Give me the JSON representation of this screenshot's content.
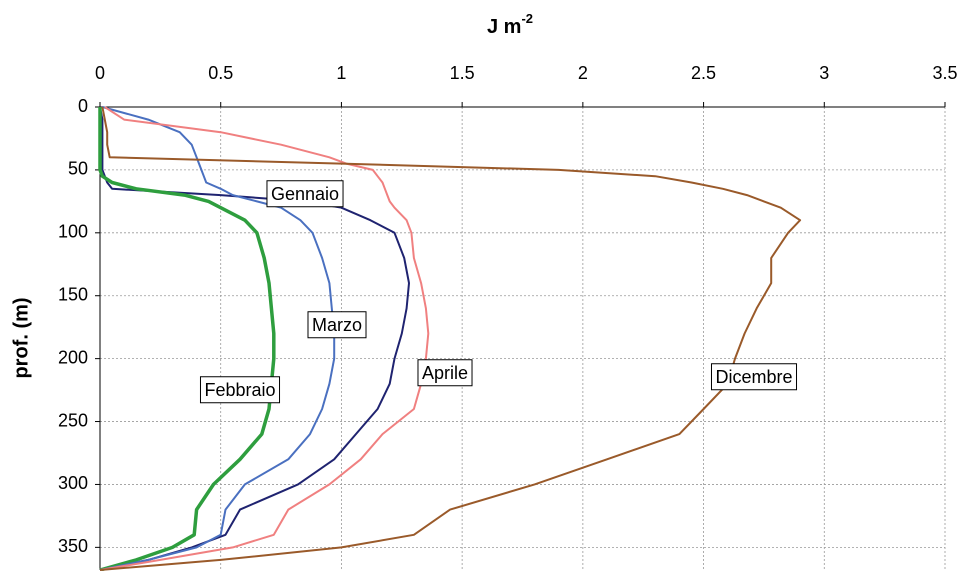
{
  "chart_data": {
    "type": "profile-line",
    "x_label": "J m",
    "x_label_sup": "-2",
    "y_label": "prof. (m)",
    "xlim": [
      0,
      3.5
    ],
    "xticks": [
      0,
      0.5,
      1,
      1.5,
      2,
      2.5,
      3,
      3.5
    ],
    "ylim": [
      0,
      368
    ],
    "yticks": [
      0,
      50,
      100,
      150,
      200,
      250,
      300,
      350
    ],
    "y_inverted": true,
    "grid": true,
    "y": [
      0,
      10,
      20,
      30,
      40,
      45,
      50,
      55,
      60,
      65,
      70,
      75,
      80,
      90,
      100,
      120,
      140,
      160,
      180,
      200,
      220,
      240,
      260,
      280,
      300,
      320,
      340,
      350,
      360,
      368
    ],
    "series": [
      {
        "name": "Gennaio",
        "color": "#1f2370",
        "width": 2,
        "values": [
          0,
          0.01,
          0.01,
          0.01,
          0.01,
          0.01,
          0.01,
          0.02,
          0.03,
          0.05,
          0.5,
          0.85,
          1.0,
          1.12,
          1.22,
          1.26,
          1.28,
          1.27,
          1.25,
          1.22,
          1.2,
          1.15,
          1.06,
          0.97,
          0.82,
          0.58,
          0.52,
          0.38,
          0.2,
          0
        ]
      },
      {
        "name": "Febbraio",
        "color": "#2e9e3e",
        "width": 3.5,
        "values": [
          0,
          0,
          0,
          0,
          0,
          0,
          0,
          0.01,
          0.05,
          0.15,
          0.35,
          0.45,
          0.5,
          0.6,
          0.65,
          0.68,
          0.7,
          0.71,
          0.72,
          0.72,
          0.71,
          0.7,
          0.67,
          0.58,
          0.47,
          0.4,
          0.39,
          0.3,
          0.15,
          0
        ]
      },
      {
        "name": "Marzo",
        "color": "#4a70c0",
        "width": 2,
        "values": [
          0.01,
          0.2,
          0.33,
          0.38,
          0.4,
          0.41,
          0.42,
          0.43,
          0.44,
          0.5,
          0.55,
          0.65,
          0.75,
          0.83,
          0.88,
          0.92,
          0.95,
          0.96,
          0.97,
          0.97,
          0.95,
          0.92,
          0.87,
          0.78,
          0.6,
          0.52,
          0.5,
          0.4,
          0.2,
          0
        ]
      },
      {
        "name": "Aprile",
        "color": "#f08080",
        "width": 2,
        "values": [
          0.02,
          0.1,
          0.5,
          0.75,
          0.95,
          1.02,
          1.13,
          1.15,
          1.17,
          1.18,
          1.19,
          1.2,
          1.22,
          1.27,
          1.29,
          1.3,
          1.33,
          1.35,
          1.36,
          1.35,
          1.33,
          1.3,
          1.17,
          1.08,
          0.95,
          0.78,
          0.72,
          0.55,
          0.25,
          0
        ]
      },
      {
        "name": "Dicembre",
        "color": "#9a5a2a",
        "width": 2,
        "values": [
          0.01,
          0.02,
          0.03,
          0.03,
          0.04,
          1.0,
          1.9,
          2.3,
          2.45,
          2.58,
          2.68,
          2.75,
          2.82,
          2.9,
          2.85,
          2.78,
          2.78,
          2.72,
          2.67,
          2.63,
          2.6,
          2.5,
          2.4,
          2.1,
          1.8,
          1.45,
          1.3,
          1.0,
          0.5,
          0
        ]
      }
    ]
  }
}
